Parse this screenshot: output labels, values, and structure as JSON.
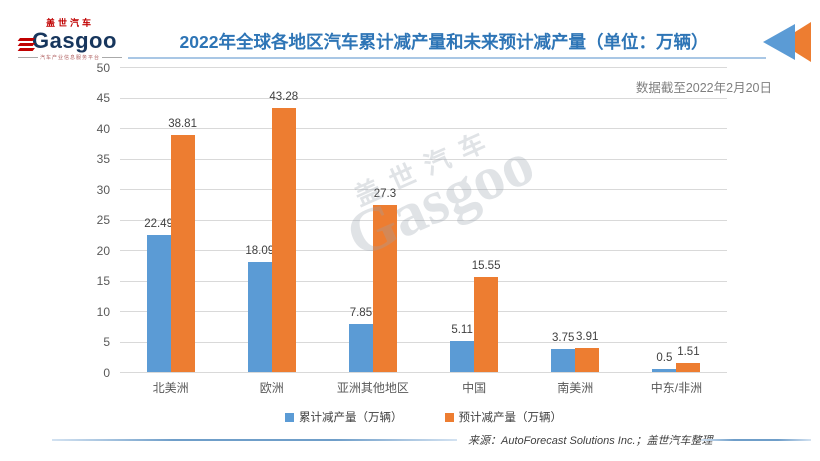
{
  "logo": {
    "brand_cn": "盖世汽车",
    "brand_en": "Gasgoo",
    "tagline": "汽车产业信息服务平台"
  },
  "header": {
    "title": "2022年全球各地区汽车累计减产量和未来预计减产量（单位：万辆）",
    "note": "数据截至2022年2月20日"
  },
  "chart_data": {
    "type": "bar",
    "categories": [
      "北美洲",
      "欧洲",
      "亚洲其他地区",
      "中国",
      "南美洲",
      "中东/非洲"
    ],
    "series": [
      {
        "name": "累计减产量（万辆）",
        "color": "#5B9BD5",
        "values": [
          22.49,
          18.09,
          7.85,
          5.11,
          3.75,
          0.5
        ]
      },
      {
        "name": "预计减产量（万辆）",
        "color": "#ED7D31",
        "values": [
          38.81,
          43.28,
          27.3,
          15.55,
          3.91,
          1.51
        ]
      }
    ],
    "title": "2022年全球各地区汽车累计减产量和未来预计减产量（单位：万辆）",
    "xlabel": "",
    "ylabel": "",
    "ylim": [
      0,
      50
    ],
    "ytick_step": 5,
    "grid": true,
    "legend_position": "bottom",
    "value_labels": true
  },
  "footer": {
    "source": "来源：AutoForecast Solutions Inc.；盖世汽车整理"
  },
  "watermark": {
    "brand_cn": "盖世汽车",
    "brand_en": "Gasgoo"
  },
  "colors": {
    "title": "#2E75B6",
    "bar_blue": "#5B9BD5",
    "bar_orange": "#ED7D31",
    "gridline": "#D9D9D9",
    "axis_text": "#595959",
    "value_text": "#404040",
    "note_text": "#7F7F7F",
    "logo_navy": "#17365D",
    "logo_red": "#C00000"
  }
}
